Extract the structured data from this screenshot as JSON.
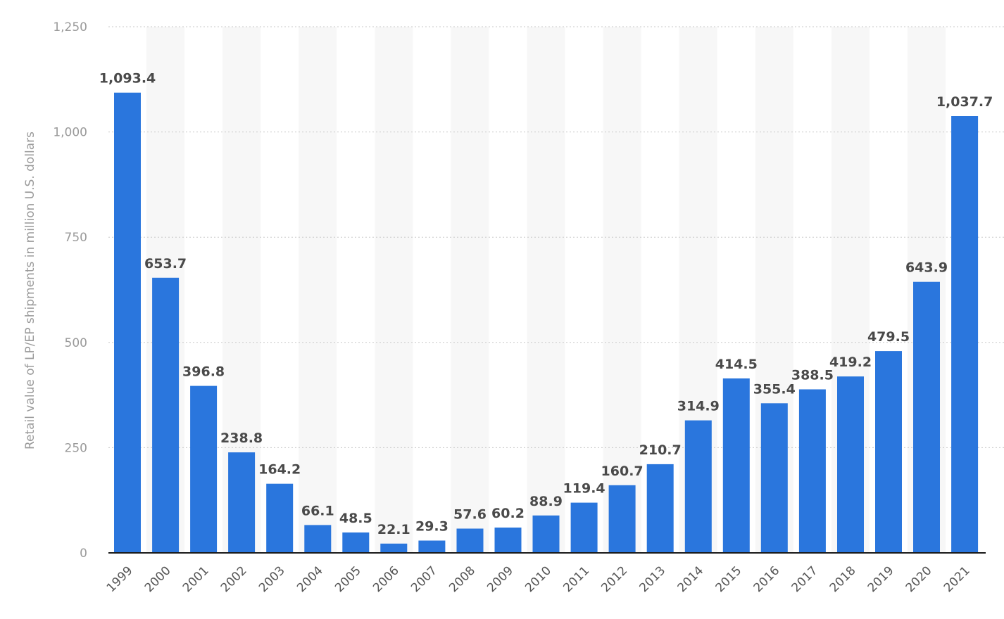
{
  "chart_data": {
    "type": "bar",
    "title": "",
    "xlabel": "",
    "ylabel": "Retail value of LP/EP shipments in million U.S. dollars",
    "ylim": [
      0,
      1250
    ],
    "yticks": [
      0,
      250,
      500,
      750,
      1000,
      1250
    ],
    "ytick_labels": [
      "0",
      "250",
      "500",
      "750",
      "1,000",
      "1,250"
    ],
    "grid": true,
    "legend": "none",
    "bar_color": "#2a76dd",
    "categories": [
      "1999",
      "2000",
      "2001",
      "2002",
      "2003",
      "2004",
      "2005",
      "2006",
      "2007",
      "2008",
      "2009",
      "2010",
      "2011",
      "2012",
      "2013",
      "2014",
      "2015",
      "2016",
      "2017",
      "2018",
      "2019",
      "2020",
      "2021"
    ],
    "values": [
      1093.4,
      653.7,
      396.8,
      238.8,
      164.2,
      66.1,
      48.5,
      22.1,
      29.3,
      57.6,
      60.2,
      88.9,
      119.4,
      160.7,
      210.7,
      314.9,
      414.5,
      355.4,
      388.5,
      419.2,
      479.5,
      643.9,
      1037.7
    ],
    "value_labels": [
      "1,093.4",
      "653.7",
      "396.8",
      "238.8",
      "164.2",
      "66.1",
      "48.5",
      "22.1",
      "29.3",
      "57.6",
      "60.2",
      "88.9",
      "119.4",
      "160.7",
      "210.7",
      "314.9",
      "414.5",
      "355.4",
      "388.5",
      "419.2",
      "479.5",
      "643.9",
      "1,037.7"
    ]
  }
}
